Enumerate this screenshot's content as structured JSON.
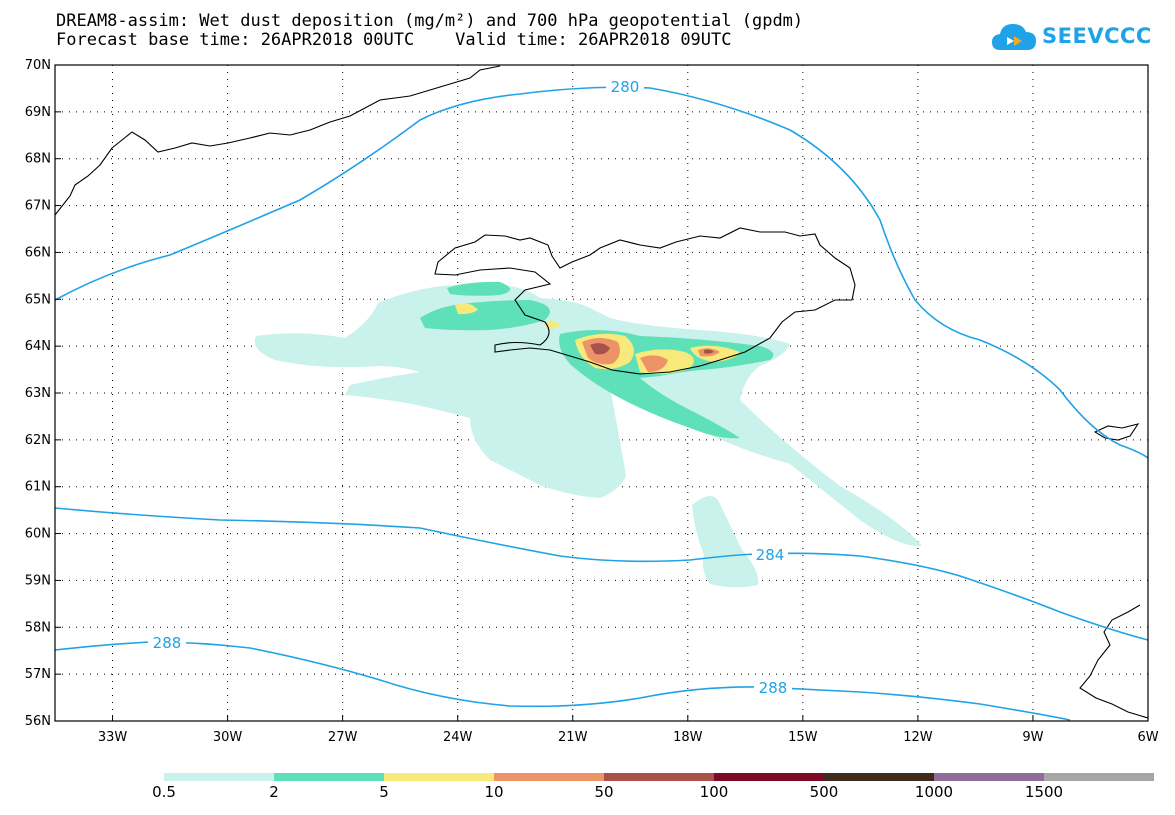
{
  "header": {
    "title_line1": "DREAM8-assim: Wet dust deposition (mg/m²) and 700 hPa geopotential (gpdm)",
    "title_line2": "Forecast base time: 26APR2018 00UTC    Valid time: 26APR2018 09UTC",
    "logo_text": "SEEVCCC"
  },
  "map": {
    "lat_labels": [
      "70N",
      "69N",
      "68N",
      "67N",
      "66N",
      "65N",
      "64N",
      "63N",
      "62N",
      "61N",
      "60N",
      "59N",
      "58N",
      "57N",
      "56N"
    ],
    "lon_labels": [
      "33W",
      "30W",
      "27W",
      "24W",
      "21W",
      "18W",
      "15W",
      "12W",
      "9W",
      "6W"
    ],
    "lat_range": [
      56,
      70
    ],
    "lon_range": [
      -34.5,
      -6
    ],
    "grid": true,
    "contour_labels": [
      "280",
      "284",
      "288",
      "288"
    ]
  },
  "legend": {
    "labels": [
      "0.5",
      "2",
      "5",
      "10",
      "50",
      "100",
      "500",
      "1000",
      "1500"
    ],
    "colors": [
      "#c8f2eb",
      "#5ee0b8",
      "#f7e97c",
      "#ec9467",
      "#a8504a",
      "#7d0a27",
      "#3f2b1c",
      "#8e6b99",
      "#a6a6a6"
    ]
  }
}
